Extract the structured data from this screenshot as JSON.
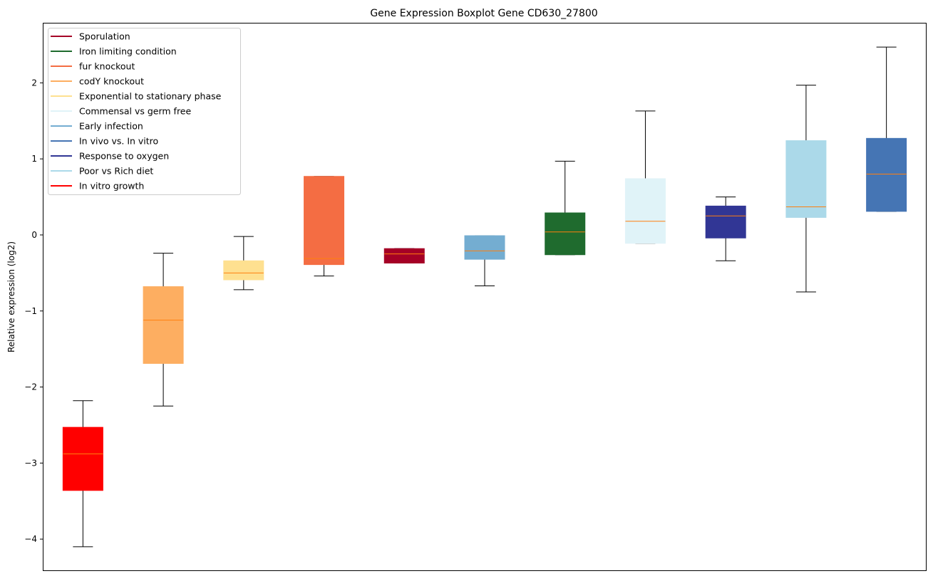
{
  "chart_data": {
    "type": "boxplot",
    "title": "Gene Expression Boxplot Gene CD630_27800",
    "xlabel": "",
    "ylabel": "Relative expression (log2)",
    "ylim": [
      -4.42,
      2.79
    ],
    "yticks": [
      -4,
      -3,
      -2,
      -1,
      0,
      1,
      2
    ],
    "ytick_labels": [
      "−4",
      "−3",
      "−2",
      "−1",
      "0",
      "1",
      "2"
    ],
    "grid": false,
    "legend_position": "top-left",
    "legend": [
      {
        "label": "Sporulation",
        "color": "#a50026"
      },
      {
        "label": "Iron limiting condition",
        "color": "#1f6b2e"
      },
      {
        "label": "fur knockout",
        "color": "#f46d43"
      },
      {
        "label": "codY knockout",
        "color": "#fdae61"
      },
      {
        "label": "Exponential to stationary phase",
        "color": "#fee090"
      },
      {
        "label": "Commensal vs germ free",
        "color": "#e0f3f8"
      },
      {
        "label": "Early infection",
        "color": "#74add1"
      },
      {
        "label": "In vivo vs. In vitro",
        "color": "#4575b4"
      },
      {
        "label": "Response to oxygen",
        "color": "#313695"
      },
      {
        "label": "Poor vs Rich diet",
        "color": "#abd9e9"
      },
      {
        "label": "In vitro growth",
        "color": "#ff0000"
      }
    ],
    "median_color": "#ff7f0e",
    "series": [
      {
        "name": "In vitro growth",
        "color": "#ff0000",
        "whisker_low": -4.1,
        "q1": -3.36,
        "median": -2.88,
        "q3": -2.53,
        "whisker_high": -2.18
      },
      {
        "name": "codY knockout",
        "color": "#fdae61",
        "whisker_low": -2.25,
        "q1": -1.69,
        "median": -1.12,
        "q3": -0.68,
        "whisker_high": -0.24
      },
      {
        "name": "Exponential to stationary phase",
        "color": "#fee090",
        "whisker_low": -0.72,
        "q1": -0.59,
        "median": -0.5,
        "q3": -0.34,
        "whisker_high": -0.02
      },
      {
        "name": "fur knockout",
        "color": "#f46d43",
        "whisker_low": -0.54,
        "q1": -0.39,
        "median": -0.31,
        "q3": 0.77,
        "whisker_high": 0.77
      },
      {
        "name": "Sporulation",
        "color": "#a50026",
        "whisker_low": -0.37,
        "q1": -0.37,
        "median": -0.25,
        "q3": -0.18,
        "whisker_high": -0.18
      },
      {
        "name": "Early infection",
        "color": "#74add1",
        "whisker_low": -0.67,
        "q1": -0.32,
        "median": -0.21,
        "q3": -0.01,
        "whisker_high": -0.01
      },
      {
        "name": "Iron limiting condition",
        "color": "#1f6b2e",
        "whisker_low": -0.26,
        "q1": -0.26,
        "median": 0.04,
        "q3": 0.29,
        "whisker_high": 0.97
      },
      {
        "name": "Commensal vs germ free",
        "color": "#e0f3f8",
        "whisker_low": -0.11,
        "q1": -0.11,
        "median": 0.18,
        "q3": 0.74,
        "whisker_high": 1.63
      },
      {
        "name": "Response to oxygen",
        "color": "#313695",
        "whisker_low": -0.34,
        "q1": -0.04,
        "median": 0.25,
        "q3": 0.38,
        "whisker_high": 0.5
      },
      {
        "name": "Poor vs Rich diet",
        "color": "#abd9e9",
        "whisker_low": -0.75,
        "q1": 0.23,
        "median": 0.37,
        "q3": 1.24,
        "whisker_high": 1.97
      },
      {
        "name": "In vivo vs. In vitro",
        "color": "#4575b4",
        "whisker_low": 0.31,
        "q1": 0.31,
        "median": 0.8,
        "q3": 1.27,
        "whisker_high": 2.47
      }
    ]
  }
}
